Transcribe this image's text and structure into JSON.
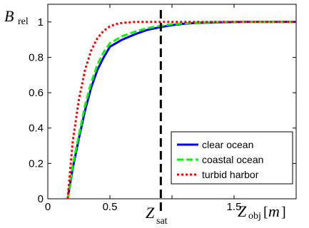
{
  "chart_data": {
    "type": "line",
    "ylabel": {
      "main": "B",
      "sub": "rel"
    },
    "xlabel": {
      "main": "Z",
      "sub": "obj",
      "unit_open": "[",
      "unit": "m",
      "unit_close": "]"
    },
    "xlim": [
      0,
      2
    ],
    "ylim": [
      0,
      1.1
    ],
    "xticks": [
      0,
      0.5,
      1,
      1.5
    ],
    "xtick_labels": [
      "0",
      "0.5",
      "",
      "1.5"
    ],
    "yticks": [
      0,
      0.2,
      0.4,
      0.6,
      0.8,
      1
    ],
    "ytick_labels": [
      "0",
      "0.2",
      "0.4",
      "0.6",
      "0.8",
      "1"
    ],
    "grid": false,
    "legend_position": "bottom-right",
    "vline": {
      "x": 0.91,
      "label_main": "Z",
      "label_sub": "sat",
      "color": "#000000",
      "style": "dashed"
    },
    "series": [
      {
        "name": "clear ocean",
        "color": "#0000ff",
        "style": "solid",
        "x": [
          0.16,
          0.2,
          0.25,
          0.3,
          0.35,
          0.4,
          0.45,
          0.5,
          0.6,
          0.7,
          0.8,
          0.9,
          1.0,
          1.1,
          1.2,
          1.4,
          1.6,
          2.0
        ],
        "y": [
          0.0,
          0.17,
          0.34,
          0.5,
          0.63,
          0.73,
          0.8,
          0.86,
          0.9,
          0.93,
          0.955,
          0.97,
          0.982,
          0.99,
          0.995,
          0.998,
          1.0,
          1.0
        ]
      },
      {
        "name": "coastal ocean",
        "color": "#00ff00",
        "style": "dashed",
        "x": [
          0.16,
          0.2,
          0.25,
          0.3,
          0.35,
          0.4,
          0.45,
          0.5,
          0.6,
          0.7,
          0.8,
          0.9,
          1.0,
          1.1,
          1.2,
          1.4,
          1.6,
          2.0
        ],
        "y": [
          0.0,
          0.19,
          0.36,
          0.53,
          0.66,
          0.76,
          0.83,
          0.88,
          0.92,
          0.945,
          0.965,
          0.978,
          0.987,
          0.993,
          0.997,
          1.0,
          1.0,
          1.0
        ]
      },
      {
        "name": "turbid harbor",
        "color": "#ff0000",
        "style": "dotted",
        "x": [
          0.16,
          0.2,
          0.25,
          0.3,
          0.35,
          0.4,
          0.45,
          0.5,
          0.55,
          0.6,
          0.7,
          0.8,
          0.9,
          1.0,
          1.2,
          1.6,
          2.0
        ],
        "y": [
          0.0,
          0.32,
          0.56,
          0.73,
          0.84,
          0.91,
          0.95,
          0.975,
          0.988,
          0.995,
          1.0,
          1.0,
          1.0,
          1.0,
          1.0,
          1.0,
          1.0
        ]
      }
    ]
  }
}
